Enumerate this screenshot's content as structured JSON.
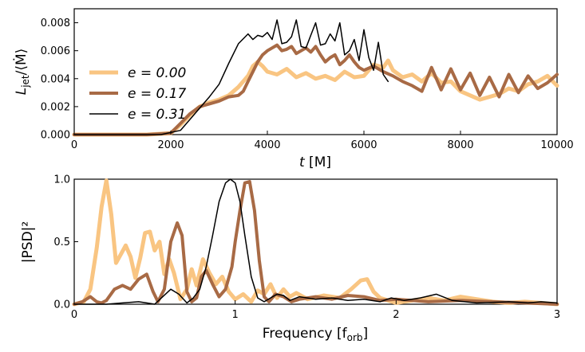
{
  "chart_data": [
    {
      "type": "line",
      "title": "",
      "xlabel_main": "t",
      "xlabel_unit": " [M]",
      "ylabel_main": "L",
      "ylabel_sub": "jet",
      "ylabel_tail": "/⟨Ṁ⟩",
      "xlim": [
        0,
        10000
      ],
      "ylim": [
        0,
        0.009
      ],
      "xticks": [
        0,
        2000,
        4000,
        6000,
        8000,
        10000
      ],
      "xtick_labels": [
        "0",
        "2000",
        "4000",
        "6000",
        "8000",
        "10000"
      ],
      "yticks": [
        0,
        0.002,
        0.004,
        0.006,
        0.008
      ],
      "ytick_labels": [
        "0.000",
        "0.002",
        "0.004",
        "0.006",
        "0.008"
      ],
      "legend": [
        "e = 0.00",
        "e = 0.17",
        "e = 0.31"
      ],
      "series": [
        {
          "name": "e = 0.00",
          "color": "#f9c582",
          "x": [
            0,
            1500,
            2000,
            2200,
            2400,
            2600,
            2800,
            3000,
            3200,
            3400,
            3600,
            3700,
            3800,
            3900,
            4000,
            4200,
            4400,
            4600,
            4800,
            5000,
            5200,
            5400,
            5600,
            5800,
            6000,
            6200,
            6400,
            6500,
            6600,
            6800,
            7000,
            7200,
            7400,
            7600,
            7800,
            8000,
            8200,
            8400,
            8600,
            8800,
            9000,
            9200,
            9400,
            9600,
            9800,
            10000
          ],
          "y": [
            0,
            0,
            0.0001,
            0.0007,
            0.0014,
            0.002,
            0.0023,
            0.0025,
            0.0028,
            0.0034,
            0.0042,
            0.0049,
            0.0052,
            0.0049,
            0.0045,
            0.0043,
            0.0047,
            0.0041,
            0.0044,
            0.004,
            0.0042,
            0.0039,
            0.0045,
            0.0041,
            0.0042,
            0.005,
            0.0048,
            0.0053,
            0.0046,
            0.0041,
            0.0043,
            0.0038,
            0.0044,
            0.0037,
            0.0038,
            0.0031,
            0.0028,
            0.0025,
            0.0027,
            0.0029,
            0.0033,
            0.0031,
            0.0036,
            0.0038,
            0.0042,
            0.0035
          ]
        },
        {
          "name": "e = 0.17",
          "color": "#a86a45",
          "x": [
            0,
            1500,
            2000,
            2200,
            2400,
            2600,
            2800,
            3000,
            3200,
            3400,
            3500,
            3600,
            3700,
            3800,
            3900,
            4000,
            4100,
            4200,
            4300,
            4400,
            4500,
            4600,
            4700,
            4800,
            4900,
            5000,
            5100,
            5200,
            5300,
            5400,
            5500,
            5600,
            5700,
            5800,
            5900,
            6000,
            6200,
            6400,
            6600,
            6800,
            7000,
            7200,
            7400,
            7600,
            7800,
            8000,
            8200,
            8400,
            8600,
            8800,
            9000,
            9200,
            9400,
            9600,
            9800,
            10000
          ],
          "y": [
            0,
            0,
            0.0001,
            0.0008,
            0.0015,
            0.002,
            0.0022,
            0.0024,
            0.0027,
            0.0028,
            0.0031,
            0.0038,
            0.0045,
            0.0052,
            0.0057,
            0.006,
            0.0062,
            0.0064,
            0.006,
            0.0061,
            0.0063,
            0.0058,
            0.006,
            0.0062,
            0.0059,
            0.0063,
            0.0057,
            0.0052,
            0.0055,
            0.0057,
            0.005,
            0.0053,
            0.0057,
            0.0052,
            0.0048,
            0.0046,
            0.0049,
            0.0045,
            0.0042,
            0.0038,
            0.0035,
            0.0031,
            0.0048,
            0.0032,
            0.0047,
            0.0032,
            0.0044,
            0.0028,
            0.0041,
            0.0027,
            0.0043,
            0.003,
            0.0042,
            0.0033,
            0.0037,
            0.0043
          ]
        },
        {
          "name": "e = 0.31",
          "color": "#000000",
          "x": [
            0,
            1800,
            2200,
            2400,
            2600,
            2800,
            3000,
            3200,
            3400,
            3600,
            3700,
            3800,
            3900,
            4000,
            4100,
            4200,
            4300,
            4400,
            4500,
            4600,
            4700,
            4800,
            4900,
            5000,
            5100,
            5200,
            5300,
            5400,
            5500,
            5600,
            5700,
            5800,
            5900,
            6000,
            6100,
            6200,
            6300,
            6400,
            6500
          ],
          "y": [
            0,
            0,
            0.0003,
            0.0011,
            0.0019,
            0.0027,
            0.0036,
            0.0051,
            0.0065,
            0.0072,
            0.0068,
            0.0071,
            0.007,
            0.0073,
            0.0068,
            0.0082,
            0.0065,
            0.0066,
            0.007,
            0.0082,
            0.0063,
            0.0062,
            0.0071,
            0.008,
            0.0064,
            0.0065,
            0.0072,
            0.0067,
            0.008,
            0.0057,
            0.006,
            0.0068,
            0.0053,
            0.0075,
            0.0055,
            0.0046,
            0.0066,
            0.0043,
            0.0038
          ]
        }
      ]
    },
    {
      "type": "line",
      "title": "",
      "xlabel_main": "Frequency [f",
      "xlabel_sub": "orb",
      "xlabel_tail": "]",
      "ylabel": "|PSD|²",
      "xlim": [
        0,
        3
      ],
      "ylim": [
        0,
        1
      ],
      "xticks": [
        0,
        1,
        2,
        3
      ],
      "xtick_labels": [
        "0",
        "1",
        "2",
        "3"
      ],
      "yticks": [
        0,
        0.5,
        1
      ],
      "ytick_labels": [
        "0.0",
        "0.5",
        "1.0"
      ],
      "series": [
        {
          "name": "e = 0.00",
          "color": "#f9c582",
          "x": [
            0,
            0.06,
            0.1,
            0.14,
            0.17,
            0.2,
            0.23,
            0.26,
            0.29,
            0.32,
            0.35,
            0.38,
            0.41,
            0.44,
            0.47,
            0.5,
            0.53,
            0.56,
            0.59,
            0.62,
            0.66,
            0.7,
            0.73,
            0.76,
            0.8,
            0.84,
            0.88,
            0.92,
            0.96,
            1.0,
            1.05,
            1.1,
            1.14,
            1.18,
            1.22,
            1.26,
            1.3,
            1.34,
            1.38,
            1.45,
            1.55,
            1.65,
            1.72,
            1.78,
            1.82,
            1.86,
            1.9,
            1.95,
            2.0,
            2.1,
            2.2,
            2.3,
            2.4,
            2.5,
            2.6,
            2.7,
            2.8,
            2.9,
            3.0
          ],
          "y": [
            0,
            0.02,
            0.12,
            0.45,
            0.78,
            0.99,
            0.72,
            0.33,
            0.4,
            0.47,
            0.38,
            0.21,
            0.37,
            0.57,
            0.58,
            0.43,
            0.5,
            0.24,
            0.36,
            0.25,
            0.04,
            0.12,
            0.28,
            0.15,
            0.36,
            0.25,
            0.16,
            0.22,
            0.1,
            0.04,
            0.08,
            0.02,
            0.11,
            0.08,
            0.16,
            0.05,
            0.12,
            0.06,
            0.09,
            0.04,
            0.07,
            0.05,
            0.12,
            0.19,
            0.2,
            0.1,
            0.05,
            0.03,
            0.01,
            0.03,
            0.05,
            0.03,
            0.06,
            0.04,
            0.02,
            0.01,
            0.02,
            0.01,
            0
          ]
        },
        {
          "name": "e = 0.17",
          "color": "#a86a45",
          "x": [
            0,
            0.05,
            0.1,
            0.14,
            0.17,
            0.2,
            0.25,
            0.3,
            0.35,
            0.4,
            0.45,
            0.49,
            0.52,
            0.56,
            0.6,
            0.64,
            0.67,
            0.7,
            0.73,
            0.76,
            0.79,
            0.82,
            0.86,
            0.9,
            0.94,
            0.98,
            1.0,
            1.03,
            1.06,
            1.09,
            1.12,
            1.15,
            1.18,
            1.21,
            1.25,
            1.3,
            1.35,
            1.4,
            1.5,
            1.6,
            1.7,
            1.8,
            1.9,
            2.0,
            2.2,
            2.4,
            2.6,
            2.8,
            3.0
          ],
          "y": [
            0,
            0.02,
            0.06,
            0.02,
            0.01,
            0.03,
            0.12,
            0.15,
            0.12,
            0.2,
            0.24,
            0.1,
            0.02,
            0.12,
            0.5,
            0.65,
            0.55,
            0.1,
            0.02,
            0.05,
            0.22,
            0.27,
            0.16,
            0.06,
            0.12,
            0.3,
            0.5,
            0.75,
            0.97,
            0.98,
            0.75,
            0.35,
            0.06,
            0.02,
            0.08,
            0.06,
            0.02,
            0.04,
            0.06,
            0.04,
            0.07,
            0.06,
            0.03,
            0.04,
            0.02,
            0.03,
            0.02,
            0.01,
            0
          ]
        },
        {
          "name": "e = 0.31",
          "color": "#000000",
          "x": [
            0,
            0.2,
            0.3,
            0.4,
            0.45,
            0.5,
            0.55,
            0.6,
            0.65,
            0.7,
            0.74,
            0.78,
            0.82,
            0.86,
            0.9,
            0.94,
            0.97,
            1.0,
            1.03,
            1.06,
            1.1,
            1.14,
            1.18,
            1.22,
            1.26,
            1.3,
            1.34,
            1.4,
            1.5,
            1.6,
            1.7,
            1.8,
            1.9,
            1.97,
            2.05,
            2.15,
            2.25,
            2.35,
            2.5,
            2.7,
            2.82,
            2.9,
            3.0
          ],
          "y": [
            0,
            0,
            0.01,
            0.02,
            0.01,
            0,
            0.06,
            0.12,
            0.08,
            0.01,
            0.05,
            0.12,
            0.3,
            0.55,
            0.82,
            0.97,
            1.0,
            0.97,
            0.82,
            0.55,
            0.22,
            0.05,
            0.02,
            0.05,
            0.08,
            0.07,
            0.03,
            0.06,
            0.04,
            0.05,
            0.03,
            0.04,
            0.02,
            0.05,
            0.03,
            0.05,
            0.08,
            0.03,
            0.01,
            0.02,
            0.01,
            0.02,
            0.01
          ]
        }
      ]
    }
  ]
}
